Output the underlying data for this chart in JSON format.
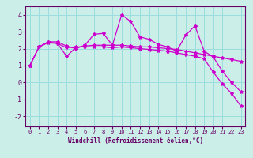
{
  "xlabel": "Windchill (Refroidissement éolien,°C)",
  "background_color": "#cceee8",
  "grid_color": "#99dddd",
  "line_color": "#cc00cc",
  "xlim": [
    -0.5,
    23.5
  ],
  "ylim": [
    -2.6,
    4.5
  ],
  "yticks": [
    -2,
    -1,
    0,
    1,
    2,
    3,
    4
  ],
  "xticks": [
    0,
    1,
    2,
    3,
    4,
    5,
    6,
    7,
    8,
    9,
    10,
    11,
    12,
    13,
    14,
    15,
    16,
    17,
    18,
    19,
    20,
    21,
    22,
    23
  ],
  "line1_x": [
    0,
    1,
    2,
    3,
    4,
    5,
    6,
    7,
    8,
    9,
    10,
    11,
    12,
    13,
    14,
    15,
    16,
    17,
    18,
    19,
    20,
    21,
    22,
    23
  ],
  "line1_y": [
    1.0,
    2.1,
    2.4,
    2.4,
    2.15,
    2.0,
    2.2,
    2.85,
    2.9,
    2.2,
    4.0,
    3.6,
    2.7,
    2.55,
    2.25,
    2.1,
    1.85,
    2.8,
    3.35,
    1.85,
    1.5,
    0.65,
    0.0,
    -0.55
  ],
  "line2_x": [
    0,
    1,
    2,
    3,
    4,
    5,
    6,
    7,
    8,
    9,
    10,
    11,
    12,
    13,
    14,
    15,
    16,
    17,
    18,
    19,
    20,
    21,
    22,
    23
  ],
  "line2_y": [
    1.0,
    2.1,
    2.4,
    2.3,
    1.55,
    2.05,
    2.15,
    2.2,
    2.2,
    2.2,
    2.2,
    2.15,
    2.1,
    2.1,
    2.05,
    2.0,
    1.95,
    1.85,
    1.75,
    1.65,
    1.55,
    1.45,
    1.35,
    1.25
  ],
  "line3_x": [
    0,
    1,
    2,
    3,
    4,
    5,
    6,
    7,
    8,
    9,
    10,
    11,
    12,
    13,
    14,
    15,
    16,
    17,
    18,
    19,
    20,
    21,
    22,
    23
  ],
  "line3_y": [
    1.0,
    2.1,
    2.35,
    2.3,
    2.05,
    2.1,
    2.1,
    2.1,
    2.1,
    2.05,
    2.1,
    2.05,
    2.0,
    1.95,
    1.9,
    1.85,
    1.75,
    1.65,
    1.55,
    1.4,
    0.6,
    -0.1,
    -0.65,
    -1.4
  ],
  "xlabel_fontsize": 5.5,
  "tick_fontsize": 5.0,
  "line_width": 0.9,
  "marker_size": 3
}
